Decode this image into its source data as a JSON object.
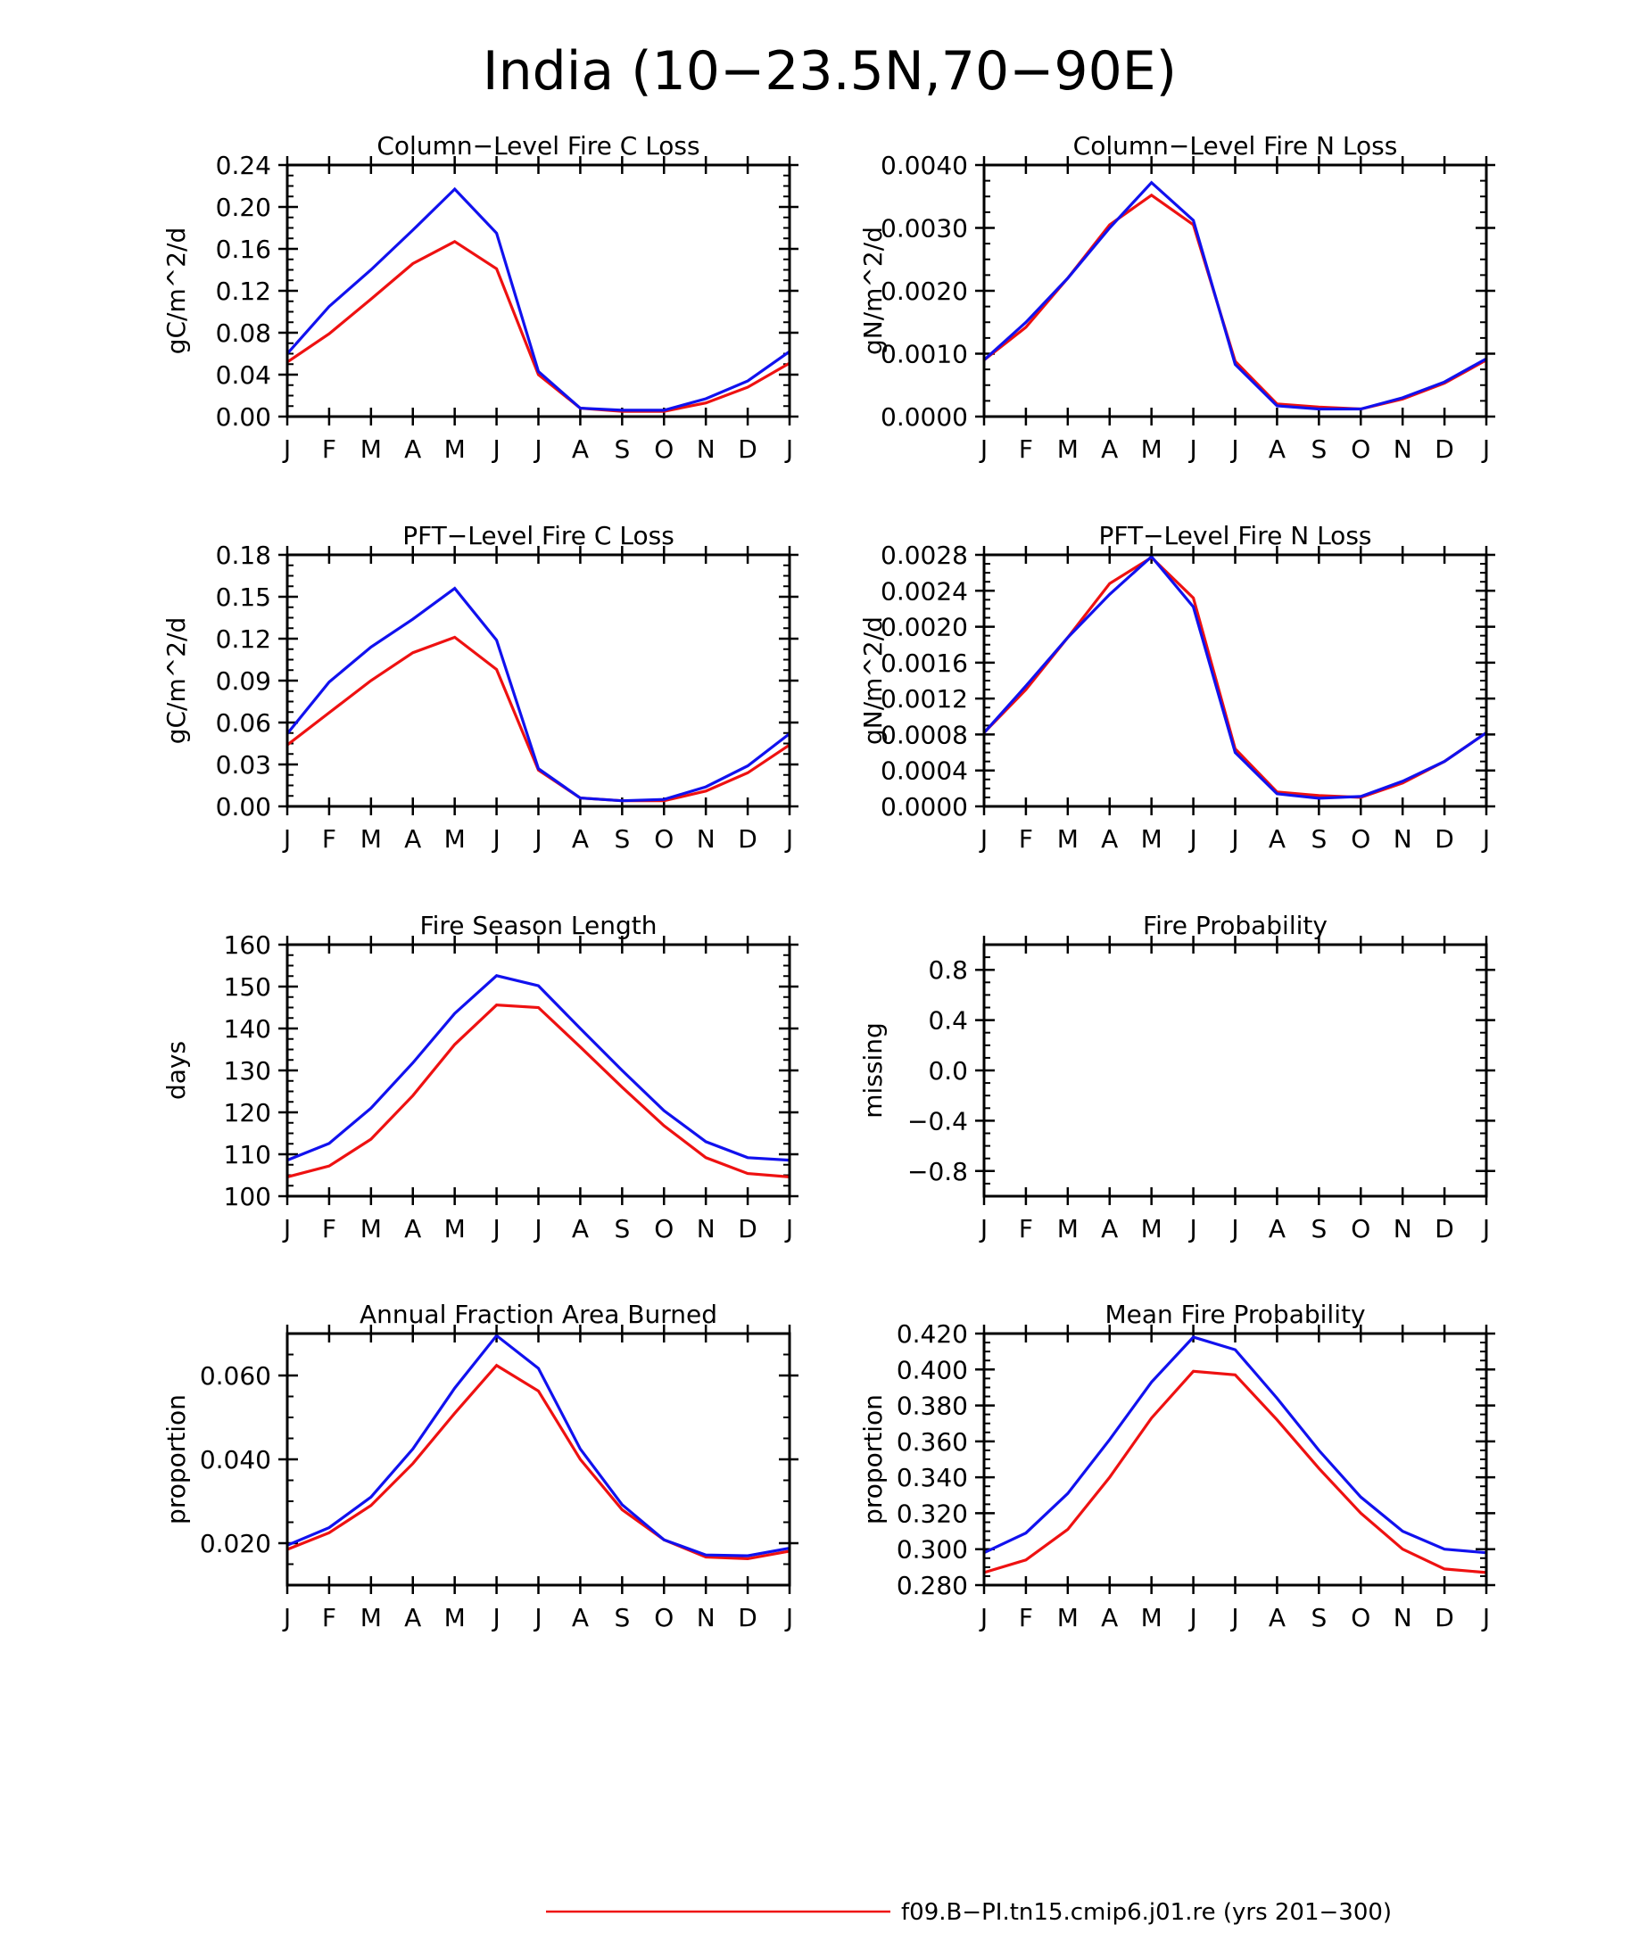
{
  "title": "India (10−23.5N,70−90E)",
  "colors": {
    "series_red": "#ee1111",
    "series_blue": "#1111ee",
    "axes": "#000000"
  },
  "chart_data": [
    {
      "type": "line",
      "title": "Column−Level Fire C Loss",
      "ylabel": "gC/m^2/d",
      "categories": [
        "J",
        "F",
        "M",
        "A",
        "M",
        "J",
        "J",
        "A",
        "S",
        "O",
        "N",
        "D",
        "J"
      ],
      "ylim": [
        0,
        0.24
      ],
      "yticks": [
        "0.00",
        "0.04",
        "0.08",
        "0.12",
        "0.16",
        "0.20",
        "0.24"
      ],
      "series": [
        {
          "color": "#ee1111",
          "values": [
            0.052,
            0.079,
            0.112,
            0.146,
            0.167,
            0.141,
            0.04,
            0.008,
            0.005,
            0.005,
            0.013,
            0.028,
            0.051
          ]
        },
        {
          "color": "#1111ee",
          "values": [
            0.06,
            0.105,
            0.14,
            0.178,
            0.217,
            0.175,
            0.043,
            0.008,
            0.006,
            0.006,
            0.017,
            0.034,
            0.062
          ]
        }
      ]
    },
    {
      "type": "line",
      "title": "Column−Level Fire N Loss",
      "ylabel": "gN/m^2/d",
      "categories": [
        "J",
        "F",
        "M",
        "A",
        "M",
        "J",
        "J",
        "A",
        "S",
        "O",
        "N",
        "D",
        "J"
      ],
      "ylim": [
        0,
        0.004
      ],
      "yticks": [
        "0.0000",
        "0.0010",
        "0.0020",
        "0.0030",
        "0.0040"
      ],
      "series": [
        {
          "color": "#ee1111",
          "values": [
            0.0009,
            0.00142,
            0.0022,
            0.00305,
            0.00352,
            0.00305,
            0.00088,
            0.0002,
            0.00015,
            0.00012,
            0.00028,
            0.00053,
            0.0009
          ]
        },
        {
          "color": "#1111ee",
          "values": [
            0.0009,
            0.0015,
            0.0022,
            0.003,
            0.00372,
            0.00312,
            0.00083,
            0.00017,
            0.00012,
            0.00012,
            0.0003,
            0.00055,
            0.00092
          ]
        }
      ]
    },
    {
      "type": "line",
      "title": "PFT−Level Fire C Loss",
      "ylabel": "gC/m^2/d",
      "categories": [
        "J",
        "F",
        "M",
        "A",
        "M",
        "J",
        "J",
        "A",
        "S",
        "O",
        "N",
        "D",
        "J"
      ],
      "ylim": [
        0,
        0.18
      ],
      "yticks": [
        "0.00",
        "0.03",
        "0.06",
        "0.09",
        "0.12",
        "0.15",
        "0.18"
      ],
      "series": [
        {
          "color": "#ee1111",
          "values": [
            0.044,
            0.067,
            0.09,
            0.11,
            0.121,
            0.098,
            0.026,
            0.006,
            0.004,
            0.004,
            0.011,
            0.024,
            0.044
          ]
        },
        {
          "color": "#1111ee",
          "values": [
            0.052,
            0.089,
            0.114,
            0.134,
            0.156,
            0.119,
            0.027,
            0.006,
            0.004,
            0.005,
            0.014,
            0.029,
            0.052
          ]
        }
      ]
    },
    {
      "type": "line",
      "title": "PFT−Level Fire N Loss",
      "ylabel": "gN/m^2/d",
      "categories": [
        "J",
        "F",
        "M",
        "A",
        "M",
        "J",
        "J",
        "A",
        "S",
        "O",
        "N",
        "D",
        "J"
      ],
      "ylim": [
        0,
        0.0028
      ],
      "yticks": [
        "0.0000",
        "0.0004",
        "0.0008",
        "0.0012",
        "0.0016",
        "0.0020",
        "0.0024",
        "0.0028"
      ],
      "series": [
        {
          "color": "#ee1111",
          "values": [
            0.00082,
            0.0013,
            0.00188,
            0.00248,
            0.00277,
            0.00232,
            0.00064,
            0.00016,
            0.00012,
            0.0001,
            0.00026,
            0.0005,
            0.00082
          ]
        },
        {
          "color": "#1111ee",
          "values": [
            0.00082,
            0.00134,
            0.00188,
            0.00236,
            0.00278,
            0.00222,
            0.0006,
            0.00014,
            9e-05,
            0.00011,
            0.00028,
            0.0005,
            0.00082
          ]
        }
      ]
    },
    {
      "type": "line",
      "title": "Fire Season Length",
      "ylabel": "days",
      "categories": [
        "J",
        "F",
        "M",
        "A",
        "M",
        "J",
        "J",
        "A",
        "S",
        "O",
        "N",
        "D",
        "J"
      ],
      "ylim": [
        100,
        160
      ],
      "yticks": [
        "100",
        "110",
        "120",
        "130",
        "140",
        "150",
        "160"
      ],
      "series": [
        {
          "color": "#ee1111",
          "values": [
            104.6,
            107.2,
            113.6,
            124.0,
            136.2,
            145.6,
            145.0,
            135.6,
            126.0,
            116.8,
            109.2,
            105.4,
            104.6
          ]
        },
        {
          "color": "#1111ee",
          "values": [
            108.6,
            112.6,
            121.0,
            131.8,
            143.6,
            152.6,
            150.2,
            140.0,
            130.0,
            120.4,
            113.0,
            109.2,
            108.6
          ]
        }
      ]
    },
    {
      "type": "line",
      "title": "Fire Probability",
      "ylabel": "missing",
      "categories": [
        "J",
        "F",
        "M",
        "A",
        "M",
        "J",
        "J",
        "A",
        "S",
        "O",
        "N",
        "D",
        "J"
      ],
      "ylim": [
        -1,
        1
      ],
      "yticks": [
        "−0.8",
        "−0.4",
        "0.0",
        "0.4",
        "0.8"
      ],
      "series": []
    },
    {
      "type": "line",
      "title": "Annual Fraction Area Burned",
      "ylabel": "proportion",
      "categories": [
        "J",
        "F",
        "M",
        "A",
        "M",
        "J",
        "J",
        "A",
        "S",
        "O",
        "N",
        "D",
        "J"
      ],
      "ylim": [
        0.01,
        0.07
      ],
      "yticks": [
        "0.020",
        "0.040",
        "0.060"
      ],
      "series": [
        {
          "color": "#ee1111",
          "values": [
            0.0185,
            0.0225,
            0.029,
            0.039,
            0.051,
            0.0624,
            0.0563,
            0.04,
            0.028,
            0.0208,
            0.0167,
            0.0163,
            0.0181
          ]
        },
        {
          "color": "#1111ee",
          "values": [
            0.0195,
            0.0237,
            0.031,
            0.0425,
            0.057,
            0.0695,
            0.0617,
            0.0425,
            0.0292,
            0.0208,
            0.0172,
            0.017,
            0.0188
          ]
        }
      ]
    },
    {
      "type": "line",
      "title": "Mean Fire Probability",
      "ylabel": "proportion",
      "categories": [
        "J",
        "F",
        "M",
        "A",
        "M",
        "J",
        "J",
        "A",
        "S",
        "O",
        "N",
        "D",
        "J"
      ],
      "ylim": [
        0.28,
        0.42
      ],
      "yticks": [
        "0.280",
        "0.300",
        "0.320",
        "0.340",
        "0.360",
        "0.380",
        "0.400",
        "0.420"
      ],
      "series": [
        {
          "color": "#ee1111",
          "values": [
            0.287,
            0.294,
            0.311,
            0.34,
            0.373,
            0.399,
            0.397,
            0.372,
            0.345,
            0.32,
            0.3,
            0.289,
            0.287
          ]
        },
        {
          "color": "#1111ee",
          "values": [
            0.298,
            0.309,
            0.331,
            0.361,
            0.393,
            0.418,
            0.411,
            0.384,
            0.355,
            0.329,
            0.31,
            0.3,
            0.298
          ]
        }
      ]
    }
  ],
  "legend": [
    {
      "color": "#ee1111",
      "label": "f09.B−PI.tn15.cmip6.j01.re (yrs 201−300)"
    }
  ]
}
